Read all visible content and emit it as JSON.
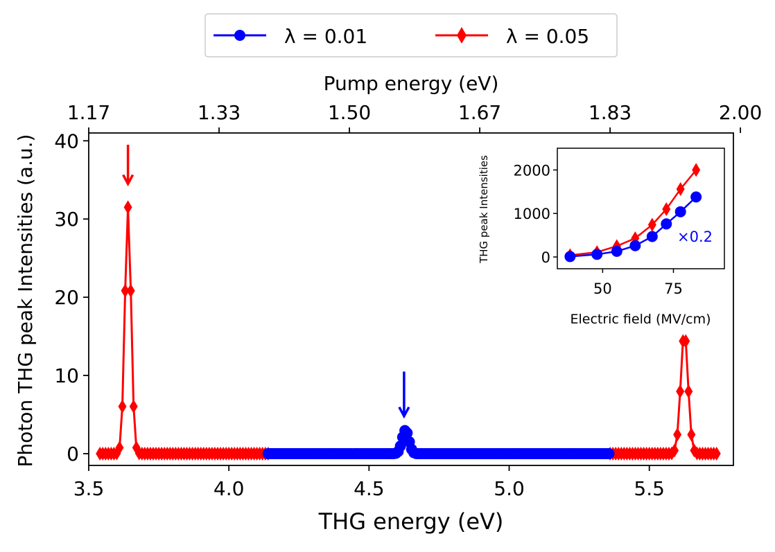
{
  "chart_data": [
    {
      "type": "line",
      "name": "main",
      "xlabel": "THG energy (eV)",
      "ylabel": "Photon THG peak Intensities (a.u.)",
      "xlim": [
        3.5,
        5.8
      ],
      "ylim": [
        -1.5,
        41
      ],
      "xticks": [
        3.5,
        4.0,
        4.5,
        5.0,
        5.5
      ],
      "xtick_labels": [
        "3.5",
        "4.0",
        "4.5",
        "5.0",
        "5.5"
      ],
      "yticks": [
        0,
        10,
        20,
        30,
        40
      ],
      "ytick_labels": [
        "0",
        "10",
        "20",
        "30",
        "40"
      ],
      "top_axis": {
        "label": "Pump energy (eV)",
        "tick_labels": [
          "1.17",
          "1.33",
          "1.50",
          "1.67",
          "1.83",
          "2.00"
        ],
        "tick_positions_thg": [
          3.5,
          3.965,
          4.43,
          4.895,
          5.36,
          5.825
        ]
      },
      "legend": {
        "placement": "top-center-outside",
        "entries": [
          "λ = 0.01",
          "λ = 0.05"
        ]
      },
      "series": [
        {
          "name": "λ = 0.01",
          "color": "#0000ff",
          "marker": "circle",
          "x_range": [
            4.14,
            5.36
          ],
          "x_step": 0.008,
          "peaks": [
            {
              "center": 4.63,
              "height": 3.0,
              "sigma": 0.012
            }
          ]
        },
        {
          "name": "λ = 0.05",
          "color": "#ff0000",
          "marker": "thin-diamond",
          "segments": [
            [
              3.54,
              4.14
            ],
            [
              5.36,
              5.74
            ]
          ],
          "x_step": 0.01,
          "peaks": [
            {
              "center": 3.64,
              "height": 31.5,
              "sigma": 0.011
            },
            {
              "center": 5.625,
              "height": 15.5,
              "sigma": 0.013
            }
          ]
        }
      ],
      "annotations": [
        {
          "type": "arrow",
          "color": "#ff0000",
          "x": 3.64,
          "y_from": 39.5,
          "y_to": 34.5
        },
        {
          "type": "arrow",
          "color": "#0000ff",
          "x": 4.625,
          "y_from": 10.5,
          "y_to": 4.8
        }
      ]
    },
    {
      "type": "line",
      "name": "inset",
      "xlabel": "Electric field (MV/cm)",
      "ylabel": "THG peak Intensities",
      "xlim": [
        34,
        93
      ],
      "ylim": [
        -270,
        2500
      ],
      "xticks": [
        50,
        75
      ],
      "xtick_labels": [
        "50",
        "75"
      ],
      "yticks": [
        0,
        1000,
        2000
      ],
      "ytick_labels": [
        "0",
        "1000",
        "2000"
      ],
      "annotation_text": "×0.2",
      "series": [
        {
          "name": "λ = 0.01",
          "color": "#0000ff",
          "marker": "circle",
          "x": [
            38.5,
            48,
            55,
            61.5,
            67.5,
            72.5,
            77.5,
            83
          ],
          "y": [
            10,
            60,
            130,
            260,
            470,
            760,
            1040,
            1380
          ]
        },
        {
          "name": "λ = 0.05",
          "color": "#ff0000",
          "marker": "thin-diamond",
          "x": [
            38.5,
            48,
            55,
            61.5,
            67.5,
            72.5,
            77.5,
            83
          ],
          "y": [
            40,
            110,
            250,
            430,
            740,
            1100,
            1560,
            2000
          ]
        }
      ]
    }
  ]
}
